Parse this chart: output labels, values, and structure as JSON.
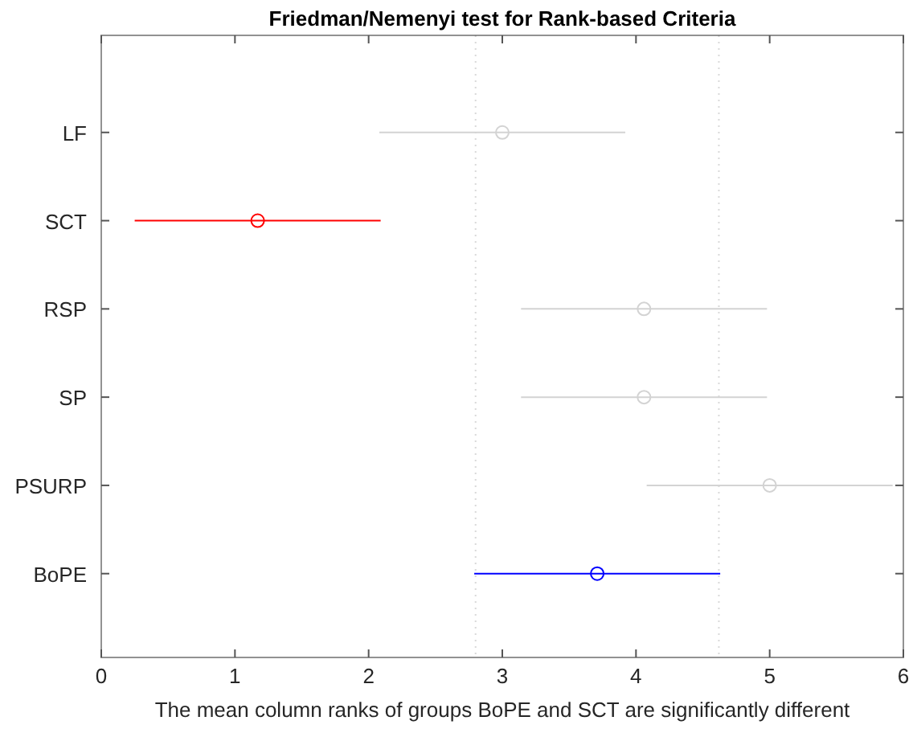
{
  "chart_data": {
    "type": "scatter",
    "orientation": "horizontal",
    "title": "Friedman/Nemenyi test for Rank-based Criteria",
    "xlabel": "The mean column ranks of groups BoPE and SCT are significantly different",
    "categories": [
      "LF",
      "SCT",
      "RSP",
      "SP",
      "PSURP",
      "BoPE"
    ],
    "values": [
      3.0,
      1.17,
      4.06,
      4.06,
      5.0,
      3.71
    ],
    "errors": [
      0.92,
      0.92,
      0.92,
      0.92,
      0.92,
      0.92
    ],
    "colors": [
      "#d3d3d3",
      "#ff0000",
      "#d3d3d3",
      "#d3d3d3",
      "#d3d3d3",
      "#0000ff"
    ],
    "marker": "circle",
    "xlim": [
      0,
      6
    ],
    "xticks": [
      0,
      1,
      2,
      3,
      4,
      5,
      6
    ],
    "ref_lines": [
      {
        "axis": "x",
        "value": 2.8,
        "color": "#d9d9d9",
        "line_style": "dotted"
      },
      {
        "axis": "x",
        "value": 4.62,
        "color": "#d9d9d9",
        "line_style": "dotted"
      }
    ],
    "grid": false
  }
}
